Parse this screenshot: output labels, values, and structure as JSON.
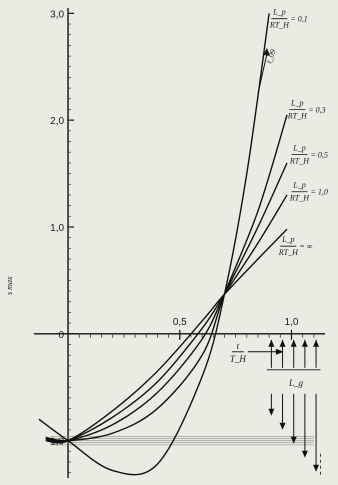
{
  "chart_data": {
    "type": "line",
    "title": "",
    "xlabel_top": "t",
    "xlabel_bottom": "T_H",
    "ylabel": "s max",
    "xlim": [
      -0.13,
      1.15
    ],
    "ylim": [
      -1.35,
      3.05
    ],
    "yticks": [
      {
        "value": 3.0,
        "label": "3,0"
      },
      {
        "value": 2.0,
        "label": "2,0"
      },
      {
        "value": 1.0,
        "label": "1,0"
      },
      {
        "value": 0,
        "label": "0"
      },
      {
        "value": -1.0,
        "label": "-1,0"
      }
    ],
    "xticks": [
      {
        "value": 0.5,
        "label": "0,5"
      },
      {
        "value": 1.0,
        "label": "1,0"
      }
    ],
    "series": [
      {
        "name": "Lp/RTH = 0,1",
        "label_num": "L_p",
        "label_den": "RT_H",
        "label_val": "= 0,1",
        "x": [
          -0.13,
          0.0,
          0.2,
          0.4,
          0.6,
          0.7,
          0.8,
          0.9
        ],
        "y": [
          -0.8,
          -1.0,
          -1.28,
          -1.22,
          -0.4,
          0.37,
          1.5,
          3.0
        ]
      },
      {
        "name": "Lp/RTH = 0,3",
        "label_num": "L_p",
        "label_den": "RT_H",
        "label_val": "= 0,3",
        "x": [
          -0.1,
          0.0,
          0.2,
          0.4,
          0.6,
          0.7,
          0.85,
          0.98
        ],
        "y": [
          -0.97,
          -1.0,
          -0.93,
          -0.7,
          -0.2,
          0.37,
          1.15,
          2.05
        ]
      },
      {
        "name": "Lp/RTH = 0,5",
        "label_num": "L_p",
        "label_den": "RT_H",
        "label_val": "= 0,5",
        "x": [
          -0.1,
          0.0,
          0.2,
          0.4,
          0.6,
          0.7,
          0.85,
          0.98
        ],
        "y": [
          -0.98,
          -1.0,
          -0.85,
          -0.55,
          -0.05,
          0.37,
          1.0,
          1.6
        ]
      },
      {
        "name": "Lp/RTH = 1,0",
        "label_num": "L_p",
        "label_den": "RT_H",
        "label_val": "= 1,0",
        "x": [
          -0.1,
          0.0,
          0.2,
          0.4,
          0.6,
          0.7,
          0.85,
          0.98
        ],
        "y": [
          -0.99,
          -1.0,
          -0.78,
          -0.45,
          0.05,
          0.37,
          0.85,
          1.3
        ]
      },
      {
        "name": "Lp/RTH = ∞",
        "label_num": "L_p",
        "label_den": "RT_H",
        "label_val": "= ∞",
        "x": [
          -0.1,
          0.0,
          0.2,
          0.4,
          0.6,
          0.7,
          0.85,
          0.98
        ],
        "y": [
          -1.0,
          -1.0,
          -0.72,
          -0.35,
          0.12,
          0.37,
          0.7,
          0.98
        ]
      }
    ],
    "annotations": {
      "arrow_label": "t_09",
      "flow_label": "L_g"
    },
    "grid": false
  }
}
